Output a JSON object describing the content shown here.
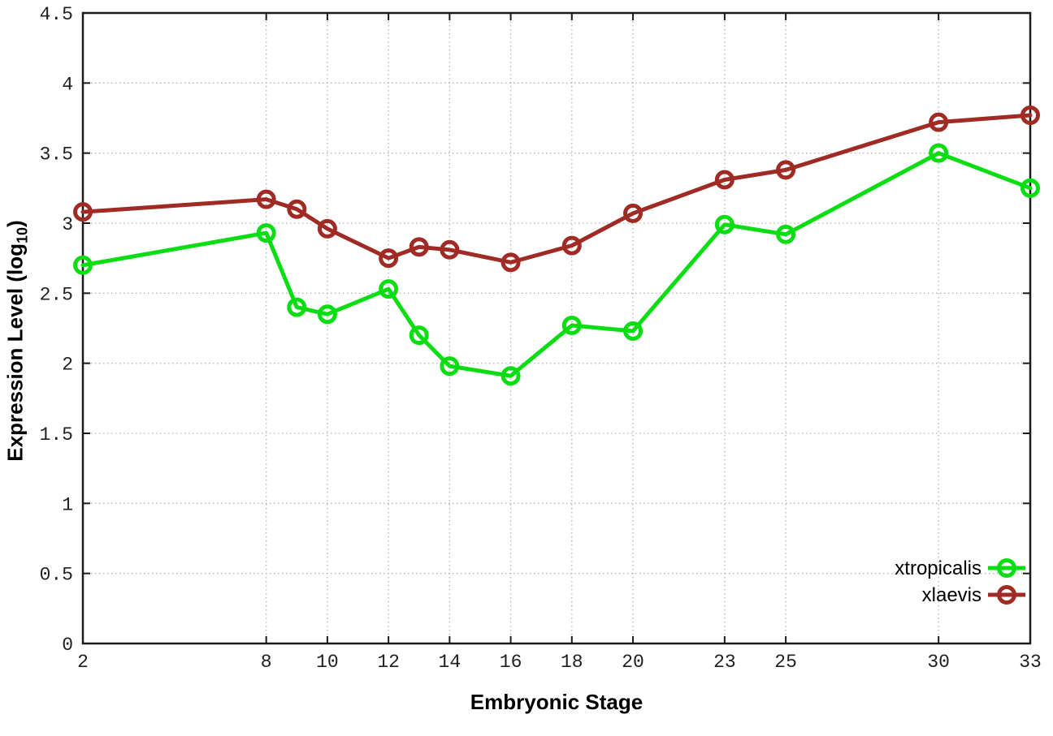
{
  "figure": {
    "background": "#ffffff",
    "xlabel": "Embryonic Stage",
    "ylabel": {
      "pre": "Expression Level (log",
      "sub": "10",
      "post": ")"
    }
  },
  "chart_data": {
    "type": "line",
    "title": "",
    "xlabel": "Embryonic Stage",
    "ylabel": "Expression Level (log10)",
    "x": [
      2,
      8,
      9,
      10,
      12,
      13,
      14,
      16,
      18,
      20,
      23,
      25,
      30,
      33
    ],
    "series": [
      {
        "name": "xtropicalis",
        "color": "#0bdd13",
        "marker": "open-circle",
        "values": [
          2.7,
          2.93,
          2.4,
          2.35,
          2.53,
          2.2,
          1.98,
          1.91,
          2.27,
          2.23,
          2.99,
          2.92,
          3.5,
          3.25
        ]
      },
      {
        "name": "xlaevis",
        "color": "#a02a24",
        "marker": "open-circle",
        "values": [
          3.08,
          3.17,
          3.1,
          2.96,
          2.75,
          2.83,
          2.81,
          2.72,
          2.84,
          3.07,
          3.31,
          3.38,
          3.72,
          3.77
        ]
      }
    ],
    "xticks": [
      2,
      8,
      10,
      12,
      14,
      16,
      18,
      20,
      23,
      25,
      30,
      33
    ],
    "yticks": [
      "0",
      "0.5",
      "1",
      "1.5",
      "2",
      "2.5",
      "3",
      "3.5",
      "4",
      "4.5"
    ],
    "xlim": [
      2,
      33
    ],
    "ylim": [
      0,
      4.5
    ],
    "grid": true,
    "grid_style": "dotted",
    "legend_position": "inside-bottom-right",
    "axis_color": "#1a1a1a",
    "grid_color": "#b4b4b4",
    "tick_label_color": "#1f1f1f"
  }
}
